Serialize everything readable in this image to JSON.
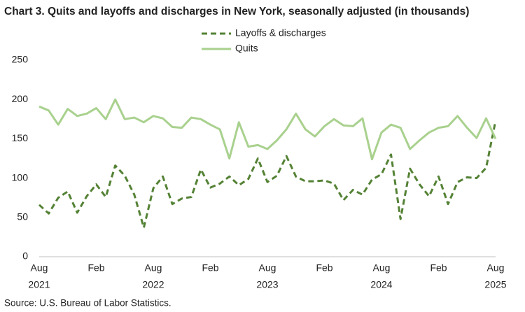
{
  "chart_data": {
    "type": "line",
    "title": "Chart 3. Quits and layoffs and discharges in New York, seasonally adjusted (in thousands)",
    "source": "Source: U.S. Bureau of Labor Statistics.",
    "categories": [
      "Aug",
      null,
      null,
      null,
      null,
      null,
      "Feb",
      null,
      null,
      null,
      null,
      null,
      "Aug",
      null,
      null,
      null,
      null,
      null,
      "Feb",
      null,
      null,
      null,
      null,
      null,
      "Aug",
      null,
      null,
      null,
      null,
      null,
      "Feb",
      null,
      null,
      null,
      null,
      null,
      "Aug",
      null,
      null,
      null,
      null,
      null,
      "Feb",
      null,
      null,
      null,
      null,
      null,
      "Aug"
    ],
    "year_labels": [
      "2021",
      null,
      null,
      null,
      null,
      null,
      null,
      null,
      null,
      null,
      null,
      null,
      "2022",
      null,
      null,
      null,
      null,
      null,
      null,
      null,
      null,
      null,
      null,
      null,
      "2023",
      null,
      null,
      null,
      null,
      null,
      null,
      null,
      null,
      null,
      null,
      null,
      "2024",
      null,
      null,
      null,
      null,
      null,
      null,
      null,
      null,
      null,
      null,
      null,
      "2025"
    ],
    "series": [
      {
        "name": "Layoffs & discharges",
        "color": "#548235",
        "dashed": true,
        "values": [
          66,
          55,
          75,
          83,
          56,
          77,
          92,
          76,
          116,
          103,
          79,
          37,
          87,
          102,
          67,
          74,
          76,
          111,
          88,
          93,
          102,
          91,
          99,
          125,
          95,
          103,
          128,
          102,
          96,
          96,
          97,
          93,
          72,
          85,
          79,
          98,
          105,
          130,
          48,
          112,
          92,
          77,
          102,
          67,
          95,
          101,
          100,
          113,
          173
        ]
      },
      {
        "name": "Quits",
        "color": "#a9d18e",
        "dashed": false,
        "values": [
          191,
          186,
          168,
          188,
          179,
          182,
          189,
          175,
          200,
          175,
          177,
          171,
          179,
          176,
          165,
          164,
          177,
          175,
          168,
          162,
          125,
          171,
          140,
          142,
          137,
          148,
          162,
          182,
          162,
          153,
          166,
          175,
          167,
          166,
          176,
          124,
          158,
          168,
          164,
          137,
          148,
          158,
          164,
          166,
          179,
          164,
          151,
          176,
          150
        ]
      }
    ],
    "ylim": [
      0,
      250
    ],
    "yticks": [
      0,
      50,
      100,
      150,
      200,
      250
    ],
    "grid": false,
    "legend": "top"
  }
}
